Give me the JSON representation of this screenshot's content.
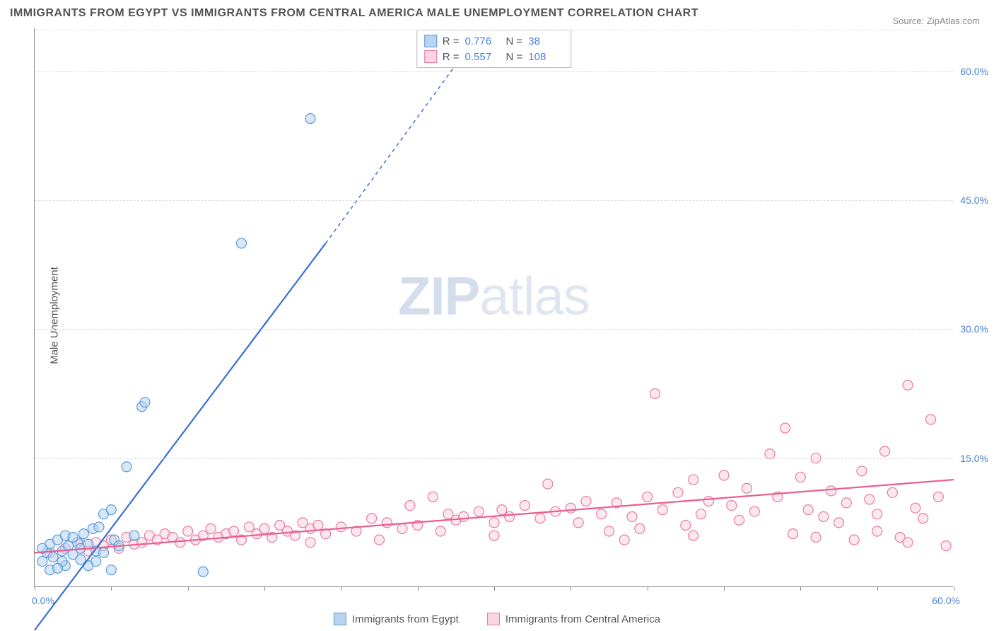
{
  "title": "IMMIGRANTS FROM EGYPT VS IMMIGRANTS FROM CENTRAL AMERICA MALE UNEMPLOYMENT CORRELATION CHART",
  "source": "Source: ZipAtlas.com",
  "ylabel": "Male Unemployment",
  "watermark_zip": "ZIP",
  "watermark_atlas": "atlas",
  "xlim": [
    0,
    60
  ],
  "ylim": [
    0,
    65
  ],
  "ytick_values": [
    15,
    30,
    45,
    60
  ],
  "ytick_labels": [
    "15.0%",
    "30.0%",
    "45.0%",
    "60.0%"
  ],
  "xtick_values": [
    0,
    5,
    10,
    15,
    20,
    25,
    30,
    35,
    40,
    45,
    50,
    55,
    60
  ],
  "xlabel_min": "0.0%",
  "xlabel_max": "60.0%",
  "grid_color": "#dddddd",
  "axis_color": "#888888",
  "tick_text_color": "#4a7fd8",
  "series": {
    "egypt": {
      "label": "Immigrants from Egypt",
      "fill": "#b8d4f0",
      "stroke": "#5a9bd8",
      "line_color": "#3b6fd0",
      "R": "0.776",
      "N": "38",
      "trend": {
        "x1": 0,
        "y1": -5,
        "x2": 19,
        "y2": 40,
        "x2_dash": 28,
        "y2_dash": 62
      },
      "points": [
        [
          0.5,
          3
        ],
        [
          0.8,
          4
        ],
        [
          1,
          5
        ],
        [
          1.2,
          3.5
        ],
        [
          1.5,
          5.5
        ],
        [
          1.8,
          4.2
        ],
        [
          2,
          6
        ],
        [
          2.2,
          4.8
        ],
        [
          2.5,
          3.8
        ],
        [
          2.8,
          5.2
        ],
        [
          3,
          4.5
        ],
        [
          3.2,
          6.2
        ],
        [
          3.5,
          5
        ],
        [
          3.8,
          6.8
        ],
        [
          4,
          4.2
        ],
        [
          4.2,
          7
        ],
        [
          4.5,
          8.5
        ],
        [
          5,
          9
        ],
        [
          5.2,
          5.5
        ],
        [
          5.5,
          4.8
        ],
        [
          6,
          14
        ],
        [
          6.5,
          6
        ],
        [
          7,
          21
        ],
        [
          7.2,
          21.5
        ],
        [
          3.5,
          2.5
        ],
        [
          4,
          3
        ],
        [
          5,
          2
        ],
        [
          2,
          2.5
        ],
        [
          1,
          2
        ],
        [
          11,
          1.8
        ],
        [
          13.5,
          40
        ],
        [
          18,
          54.5
        ],
        [
          0.5,
          4.5
        ],
        [
          1.8,
          3
        ],
        [
          2.5,
          5.8
        ],
        [
          3,
          3.2
        ],
        [
          4.5,
          4
        ],
        [
          1.5,
          2.2
        ]
      ]
    },
    "central_america": {
      "label": "Immigrants from Central America",
      "fill": "#fbd5e0",
      "stroke": "#e87ba0",
      "line_color": "#e85d8f",
      "R": "0.557",
      "N": "108",
      "trend": {
        "x1": 0,
        "y1": 4,
        "x2": 60,
        "y2": 12.5
      },
      "points": [
        [
          1,
          4
        ],
        [
          2,
          4.5
        ],
        [
          3,
          5
        ],
        [
          3.5,
          4.2
        ],
        [
          4,
          5.2
        ],
        [
          4.5,
          4.8
        ],
        [
          5,
          5.5
        ],
        [
          5.5,
          4.5
        ],
        [
          6,
          5.8
        ],
        [
          6.5,
          5
        ],
        [
          7,
          5.2
        ],
        [
          7.5,
          6
        ],
        [
          8,
          5.5
        ],
        [
          8.5,
          6.2
        ],
        [
          9,
          5.8
        ],
        [
          9.5,
          5.2
        ],
        [
          10,
          6.5
        ],
        [
          10.5,
          5.5
        ],
        [
          11,
          6
        ],
        [
          11.5,
          6.8
        ],
        [
          12,
          5.8
        ],
        [
          12.5,
          6.2
        ],
        [
          13,
          6.5
        ],
        [
          13.5,
          5.5
        ],
        [
          14,
          7
        ],
        [
          14.5,
          6.2
        ],
        [
          15,
          6.8
        ],
        [
          15.5,
          5.8
        ],
        [
          16,
          7.2
        ],
        [
          16.5,
          6.5
        ],
        [
          17,
          6
        ],
        [
          17.5,
          7.5
        ],
        [
          18,
          6.8
        ],
        [
          18.5,
          7.2
        ],
        [
          19,
          6.2
        ],
        [
          20,
          7
        ],
        [
          21,
          6.5
        ],
        [
          22,
          8
        ],
        [
          23,
          7.5
        ],
        [
          24,
          6.8
        ],
        [
          24.5,
          9.5
        ],
        [
          25,
          7.2
        ],
        [
          26,
          10.5
        ],
        [
          26.5,
          6.5
        ],
        [
          27,
          8.5
        ],
        [
          27.5,
          7.8
        ],
        [
          28,
          8.2
        ],
        [
          29,
          8.8
        ],
        [
          30,
          7.5
        ],
        [
          30.5,
          9
        ],
        [
          31,
          8.2
        ],
        [
          32,
          9.5
        ],
        [
          33,
          8
        ],
        [
          33.5,
          12
        ],
        [
          34,
          8.8
        ],
        [
          35,
          9.2
        ],
        [
          35.5,
          7.5
        ],
        [
          36,
          10
        ],
        [
          37,
          8.5
        ],
        [
          37.5,
          6.5
        ],
        [
          38,
          9.8
        ],
        [
          39,
          8.2
        ],
        [
          39.5,
          6.8
        ],
        [
          40,
          10.5
        ],
        [
          40.5,
          22.5
        ],
        [
          41,
          9
        ],
        [
          42,
          11
        ],
        [
          42.5,
          7.2
        ],
        [
          43,
          12.5
        ],
        [
          43.5,
          8.5
        ],
        [
          44,
          10
        ],
        [
          45,
          13
        ],
        [
          45.5,
          9.5
        ],
        [
          46,
          7.8
        ],
        [
          46.5,
          11.5
        ],
        [
          47,
          8.8
        ],
        [
          48,
          15.5
        ],
        [
          48.5,
          10.5
        ],
        [
          49,
          18.5
        ],
        [
          49.5,
          6.2
        ],
        [
          50,
          12.8
        ],
        [
          50.5,
          9
        ],
        [
          51,
          15
        ],
        [
          51.5,
          8.2
        ],
        [
          52,
          11.2
        ],
        [
          52.5,
          7.5
        ],
        [
          53,
          9.8
        ],
        [
          54,
          13.5
        ],
        [
          54.5,
          10.2
        ],
        [
          55,
          8.5
        ],
        [
          55.5,
          15.8
        ],
        [
          56,
          11
        ],
        [
          56.5,
          5.8
        ],
        [
          57,
          23.5
        ],
        [
          57.5,
          9.2
        ],
        [
          58,
          8
        ],
        [
          58.5,
          19.5
        ],
        [
          59,
          10.5
        ],
        [
          59.5,
          4.8
        ],
        [
          57,
          5.2
        ],
        [
          55,
          6.5
        ],
        [
          53.5,
          5.5
        ],
        [
          51,
          5.8
        ],
        [
          43,
          6
        ],
        [
          38.5,
          5.5
        ],
        [
          30,
          6
        ],
        [
          22.5,
          5.5
        ],
        [
          18,
          5.2
        ]
      ]
    }
  },
  "stat_labels": {
    "R": "R =",
    "N": "N ="
  },
  "marker_radius": 7
}
